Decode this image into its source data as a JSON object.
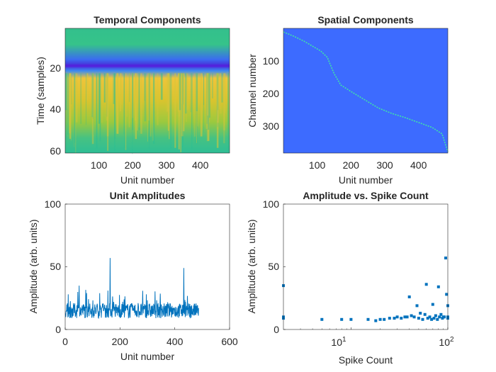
{
  "colors": {
    "line": "#0072BD",
    "spatial_bg": "#3D6BFF",
    "spatial_trace": "#3FE3A8",
    "temporal_bg": "#2BBE94",
    "temporal_band": "#5A1DE0",
    "temporal_post": "#D9C22C"
  },
  "chart_data": [
    {
      "type": "heatmap",
      "title": "Temporal Components",
      "xlabel": "Unit number",
      "ylabel": "Time (samples)",
      "xlim": [
        0,
        487
      ],
      "ylim": [
        61,
        1
      ],
      "xticks": [
        "100",
        "200",
        "300",
        "400"
      ],
      "yticks": [
        "20",
        "40",
        "60"
      ],
      "colormap": "parula",
      "features": {
        "dip_row": 20,
        "post_peak_rows": [
          24,
          40
        ],
        "baseline": "green"
      }
    },
    {
      "type": "heatmap",
      "title": "Spatial Components",
      "xlabel": "Unit number",
      "ylabel": "Channel number",
      "xlim": [
        0,
        487
      ],
      "ylim": [
        384,
        1
      ],
      "xticks": [
        "100",
        "200",
        "300",
        "400"
      ],
      "yticks": [
        "100",
        "200",
        "300"
      ],
      "colormap": "parula",
      "trace": {
        "unit": [
          0,
          30,
          60,
          90,
          110,
          130,
          150,
          170,
          200,
          240,
          280,
          320,
          360,
          400,
          440,
          470,
          487
        ],
        "channel": [
          12,
          25,
          40,
          58,
          70,
          90,
          140,
          175,
          195,
          220,
          245,
          262,
          275,
          290,
          305,
          325,
          380
        ]
      }
    },
    {
      "type": "line",
      "title": "Unit Amplitudes",
      "xlabel": "Unit number",
      "ylabel": "Amplitude (arb. units)",
      "xlim": [
        0,
        600
      ],
      "ylim": [
        0,
        100
      ],
      "xticks": [
        "0",
        "200",
        "400",
        "600"
      ],
      "yticks": [
        "0",
        "50",
        "100"
      ],
      "peaks": [
        [
          163,
          57
        ],
        [
          432,
          49
        ],
        [
          50,
          35
        ],
        [
          125,
          29
        ],
        [
          295,
          28
        ],
        [
          10,
          28
        ]
      ],
      "mean": 15,
      "n_units": 487
    },
    {
      "type": "scatter",
      "title": "Amplitude vs. Spike Count",
      "xlabel": "Spike Count",
      "ylabel": "Amplitude (arb. units)",
      "xscale": "log",
      "xlim": [
        2,
        100
      ],
      "ylim": [
        0,
        100
      ],
      "xticks": [
        "10",
        "10"
      ],
      "xtick_exponents": [
        "1",
        "2"
      ],
      "yticks": [
        "0",
        "50",
        "100"
      ],
      "points": [
        [
          2,
          35
        ],
        [
          2,
          10
        ],
        [
          2,
          9
        ],
        [
          5,
          8
        ],
        [
          8,
          8
        ],
        [
          10,
          8
        ],
        [
          15,
          8
        ],
        [
          18,
          7
        ],
        [
          20,
          8
        ],
        [
          22,
          8
        ],
        [
          25,
          9
        ],
        [
          28,
          9
        ],
        [
          30,
          10
        ],
        [
          33,
          9
        ],
        [
          36,
          10
        ],
        [
          38,
          10
        ],
        [
          40,
          26
        ],
        [
          42,
          11
        ],
        [
          45,
          10
        ],
        [
          48,
          19
        ],
        [
          50,
          9
        ],
        [
          52,
          13
        ],
        [
          55,
          8
        ],
        [
          58,
          12
        ],
        [
          60,
          36
        ],
        [
          62,
          9
        ],
        [
          65,
          10
        ],
        [
          68,
          8
        ],
        [
          70,
          20
        ],
        [
          72,
          9
        ],
        [
          75,
          11
        ],
        [
          78,
          8
        ],
        [
          80,
          34
        ],
        [
          82,
          10
        ],
        [
          85,
          12
        ],
        [
          88,
          9
        ],
        [
          90,
          10
        ],
        [
          92,
          10
        ],
        [
          95,
          57
        ],
        [
          97,
          28
        ],
        [
          100,
          19
        ],
        [
          100,
          10
        ],
        [
          100,
          9
        ]
      ]
    }
  ]
}
